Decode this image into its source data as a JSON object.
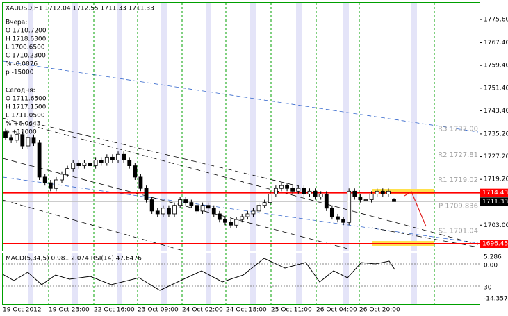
{
  "chart_data": {
    "type": "candlestick",
    "title": "XAUUSD,H1  1712.04 1712.55 1711.33 1711.33",
    "info": [
      "Вчера:",
      "O 1710.7200",
      "H 1718.6300",
      "L 1700.6500",
      "C 1710.2300",
      "% -0.0876",
      "p -15000",
      "Сегодня:",
      "O 1711.6500",
      "H 1717.1500",
      "L 1711.0500",
      "% +0.0643",
      "p +11000"
    ],
    "x_labels": [
      "19 Oct 2012",
      "19 Oct 23:00",
      "22 Oct 16:00",
      "23 Oct 09:00",
      "24 Oct 02:00",
      "24 Oct 18:00",
      "25 Oct 11:00",
      "26 Oct 04:00",
      "26 Oct 20:00"
    ],
    "open": [
      1736,
      1734,
      1733,
      1735,
      1731,
      1734,
      1732,
      1720,
      1718,
      1716,
      1719,
      1721,
      1723,
      1725,
      1724,
      1725,
      1724,
      1726,
      1725,
      1727,
      1726,
      1728,
      1726,
      1724,
      1720,
      1716,
      1712,
      1708,
      1707,
      1709,
      1707,
      1710,
      1712,
      1711,
      1710,
      1708,
      1710,
      1709,
      1707,
      1705,
      1704,
      1703,
      1705,
      1706,
      1707,
      1708,
      1710,
      1711,
      1714,
      1716,
      1717,
      1716,
      1715,
      1716,
      1714,
      1715,
      1713,
      1714,
      1709,
      1706,
      1705,
      1704,
      1715,
      1713,
      1712,
      1712,
      1714,
      1715,
      1714,
      1712.04
    ],
    "high": [
      1737,
      1735,
      1736,
      1736,
      1735,
      1735,
      1733,
      1721,
      1719,
      1720,
      1722,
      1724,
      1726,
      1726,
      1726,
      1726,
      1727,
      1727,
      1728,
      1728,
      1729,
      1729,
      1727,
      1725,
      1721,
      1717,
      1713,
      1709,
      1710,
      1710,
      1711,
      1713,
      1713,
      1712,
      1711,
      1711,
      1711,
      1710,
      1708,
      1706,
      1705,
      1706,
      1707,
      1708,
      1709,
      1711,
      1712,
      1715,
      1717,
      1718,
      1718,
      1717,
      1717,
      1717,
      1716,
      1716,
      1715,
      1715,
      1710,
      1707,
      1706,
      1716,
      1716,
      1714,
      1713,
      1715,
      1716,
      1716,
      1716,
      1712.55
    ],
    "low": [
      1733,
      1732,
      1732,
      1730,
      1730,
      1731,
      1719,
      1717,
      1715,
      1715,
      1718,
      1720,
      1722,
      1723,
      1723,
      1723,
      1723,
      1724,
      1724,
      1725,
      1725,
      1725,
      1723,
      1719,
      1715,
      1711,
      1707,
      1706,
      1706,
      1706,
      1706,
      1709,
      1710,
      1709,
      1707,
      1707,
      1708,
      1706,
      1704,
      1703,
      1702,
      1702,
      1704,
      1705,
      1706,
      1707,
      1709,
      1710,
      1713,
      1715,
      1715,
      1714,
      1714,
      1713,
      1713,
      1712,
      1712,
      1708,
      1705,
      1704,
      1703,
      1703,
      1712,
      1711,
      1711,
      1711,
      1713,
      1713,
      1713,
      1711.33
    ],
    "close": [
      1734,
      1733,
      1735,
      1731,
      1734,
      1732,
      1720,
      1718,
      1716,
      1719,
      1721,
      1723,
      1725,
      1724,
      1725,
      1724,
      1726,
      1725,
      1727,
      1726,
      1728,
      1726,
      1724,
      1720,
      1716,
      1712,
      1708,
      1707,
      1709,
      1707,
      1710,
      1712,
      1711,
      1710,
      1708,
      1710,
      1709,
      1707,
      1705,
      1704,
      1703,
      1705,
      1706,
      1707,
      1708,
      1710,
      1711,
      1714,
      1716,
      1717,
      1716,
      1715,
      1716,
      1714,
      1715,
      1713,
      1714,
      1709,
      1706,
      1705,
      1704,
      1715,
      1713,
      1712,
      1712,
      1714,
      1715,
      1714,
      1715,
      1711.33
    ],
    "ylim": [
      1694,
      1781.5
    ],
    "yticks": [
      {
        "value": 1775.6,
        "label": "1775.60"
      },
      {
        "value": 1767.4,
        "label": "1767.40"
      },
      {
        "value": 1759.4,
        "label": "1759.40"
      },
      {
        "value": 1751.4,
        "label": "1751.40"
      },
      {
        "value": 1743.4,
        "label": "1743.40"
      },
      {
        "value": 1735.2,
        "label": "1735.20"
      },
      {
        "value": 1727.2,
        "label": "1727.20"
      },
      {
        "value": 1719.2,
        "label": "1719.20"
      },
      {
        "value": 1703,
        "label": "1703.00"
      }
    ],
    "levels": [
      {
        "value": 1714.43,
        "color": "#ff0000"
      },
      {
        "value": 1711.33,
        "color": "#000000"
      },
      {
        "value": 1696.45,
        "color": "#ff0000"
      }
    ],
    "pivots": [
      {
        "label": "R3 1737.00",
        "value": 1737
      },
      {
        "label": "R2 1727.81",
        "value": 1727.81
      },
      {
        "label": "R1 1719.02",
        "value": 1719.02
      },
      {
        "label": "P 1709.836",
        "value": 1709.836
      },
      {
        "label": "S1 1701.04",
        "value": 1701.04
      }
    ],
    "indicator": {
      "title": "MACD(5,34,5) 0.981 2.074  RSI(14) 47.6476",
      "axis_labels": [
        "5.286",
        "0.00",
        "30",
        "-14.357"
      ]
    }
  }
}
